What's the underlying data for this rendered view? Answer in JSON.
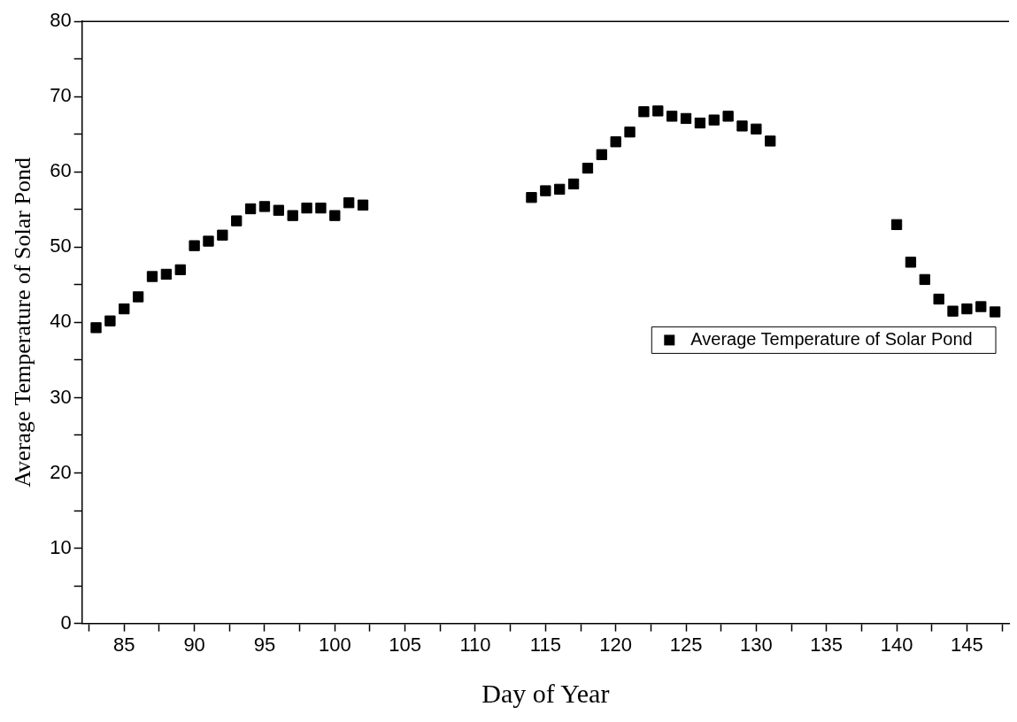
{
  "chart_data": {
    "type": "scatter",
    "xlabel": "Day of Year",
    "ylabel": "Average Temperature of Solar Pond",
    "x": [
      83,
      84,
      85,
      86,
      87,
      88,
      89,
      90,
      91,
      92,
      93,
      94,
      95,
      96,
      97,
      98,
      99,
      100,
      101,
      102,
      114,
      115,
      116,
      117,
      118,
      119,
      120,
      121,
      122,
      123,
      124,
      125,
      126,
      127,
      128,
      129,
      130,
      131,
      140,
      141,
      142,
      143,
      144,
      145,
      146,
      147
    ],
    "series": [
      {
        "name": "Average Temperature of Solar Pond",
        "color": "#000000",
        "values": [
          39.3,
          40.2,
          41.8,
          43.4,
          46.1,
          46.4,
          47.0,
          50.2,
          50.8,
          51.6,
          53.5,
          55.1,
          55.4,
          54.9,
          54.2,
          55.2,
          55.2,
          54.2,
          55.9,
          55.6,
          56.6,
          57.5,
          57.7,
          58.4,
          60.5,
          62.3,
          64.0,
          65.3,
          68.0,
          68.1,
          67.4,
          67.1,
          66.5,
          66.9,
          67.4,
          66.1,
          65.7,
          64.1,
          53.0,
          48.0,
          45.7,
          43.1,
          41.5,
          41.8,
          42.1,
          41.4
        ]
      }
    ],
    "xlim": [
      82,
      148
    ],
    "ylim": [
      0,
      80
    ],
    "xticks": [
      {
        "value": 82.5,
        "label": null
      },
      85,
      {
        "value": 87.5,
        "label": null
      },
      90,
      {
        "value": 92.5,
        "label": null
      },
      95,
      {
        "value": 97.5,
        "label": null
      },
      100,
      {
        "value": 102.5,
        "label": null
      },
      105,
      {
        "value": 107.5,
        "label": null
      },
      110,
      {
        "value": 112.5,
        "label": null
      },
      115,
      {
        "value": 117.5,
        "label": null
      },
      120,
      {
        "value": 122.5,
        "label": null
      },
      125,
      {
        "value": 127.5,
        "label": null
      },
      130,
      {
        "value": 132.5,
        "label": null
      },
      135,
      {
        "value": 137.5,
        "label": null
      },
      140,
      {
        "value": 142.5,
        "label": null
      },
      145,
      {
        "value": 147.5,
        "label": null
      }
    ],
    "yticks": [
      0,
      {
        "value": 5,
        "label": null
      },
      10,
      {
        "value": 15,
        "label": null
      },
      20,
      {
        "value": 25,
        "label": null
      },
      30,
      {
        "value": 35,
        "label": null
      },
      40,
      {
        "value": 45,
        "label": null
      },
      50,
      {
        "value": 55,
        "label": null
      },
      60,
      {
        "value": 65,
        "label": null
      },
      70,
      {
        "value": 75,
        "label": null
      },
      80
    ],
    "marker": "square",
    "grid": false,
    "legend": "right"
  }
}
